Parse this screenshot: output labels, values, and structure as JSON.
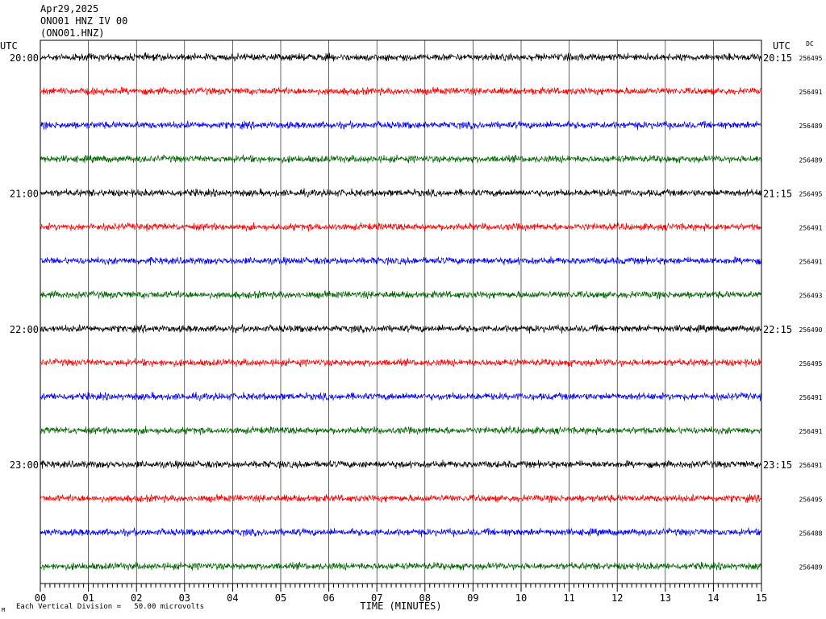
{
  "header": {
    "date": "Apr29,2025",
    "station_line": "ONO01 HNZ IV 00",
    "channel_id": "(ONO01.HNZ)"
  },
  "chart_data": {
    "type": "line",
    "title": "Apr29,2025 ONO01 HNZ IV 00 (ONO01.HNZ)",
    "left_axis_label": "UTC",
    "right_axis_label": "UTC",
    "dc_label": "DC",
    "xlabel": "TIME (MINUTES)",
    "xlim": [
      0,
      15
    ],
    "x_ticks": [
      "00",
      "01",
      "02",
      "03",
      "04",
      "05",
      "06",
      "07",
      "08",
      "09",
      "10",
      "11",
      "12",
      "13",
      "14",
      "15"
    ],
    "left_hour_labels": [
      "20:00",
      "21:00",
      "22:00",
      "23:00"
    ],
    "right_hour_labels": [
      "20:15",
      "21:15",
      "22:15",
      "23:15"
    ],
    "trace_colors": [
      "#000000",
      "#ff0000",
      "#0000ff",
      "#006400"
    ],
    "dc_values": [
      "256495",
      "256491",
      "256489",
      "256489",
      "256495",
      "256491",
      "256491",
      "256493",
      "256490",
      "256495",
      "256491",
      "256491",
      "256491",
      "256495",
      "256488",
      "256489"
    ],
    "scale_text": "Each Vertical Division =   50.00 microvolts",
    "corner_mark": "M"
  }
}
